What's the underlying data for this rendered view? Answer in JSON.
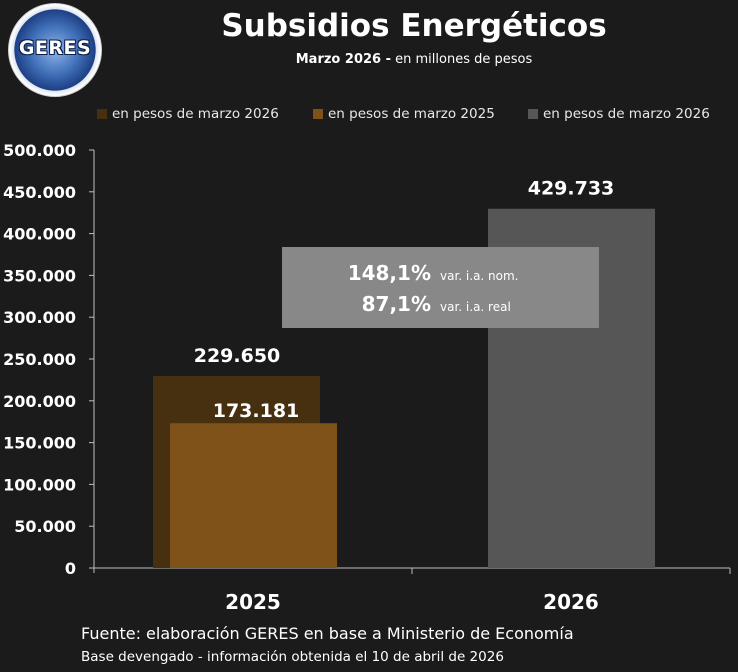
{
  "header": {
    "logo_text": "GERES",
    "title": "Subsidios Energéticos",
    "subtitle_bold": "Marzo 2026 -",
    "subtitle_rest": "en millones de pesos"
  },
  "legend": [
    {
      "label": "en pesos de marzo 2026",
      "color": "#47300f"
    },
    {
      "label": "en pesos de marzo 2025",
      "color": "#7e5218"
    },
    {
      "label": "en pesos de marzo 2026",
      "color": "#565656"
    }
  ],
  "variation": {
    "nominal_value": "148,1%",
    "nominal_label": "var. i.a. nom.",
    "real_value": "87,1%",
    "real_label": "var. i.a. real"
  },
  "footer": {
    "source": "Fuente: elaboración GERES en base a Ministerio de Economía",
    "note": "Base devengado - información obtenida el 10 de abril de 2026"
  },
  "chart_data": {
    "type": "bar",
    "categories": [
      "2025",
      "2026"
    ],
    "series": [
      {
        "name": "en pesos de marzo 2026",
        "values": [
          229650,
          null
        ],
        "labels": [
          "229.650",
          null
        ],
        "color": "#47300f"
      },
      {
        "name": "en pesos de marzo 2025",
        "values": [
          173181,
          null
        ],
        "labels": [
          "173.181",
          null
        ],
        "color": "#7e5218"
      },
      {
        "name": "en pesos de marzo 2026",
        "values": [
          null,
          429733
        ],
        "labels": [
          null,
          "429.733"
        ],
        "color": "#565656"
      }
    ],
    "ylim": [
      0,
      500000
    ],
    "yticks": [
      0,
      50000,
      100000,
      150000,
      200000,
      250000,
      300000,
      350000,
      400000,
      450000,
      500000
    ],
    "ytick_labels": [
      "0",
      "50.000",
      "100.000",
      "150.000",
      "200.000",
      "250.000",
      "300.000",
      "350.000",
      "400.000",
      "450.000",
      "500.000"
    ],
    "grid": false,
    "legend_position": "top"
  }
}
